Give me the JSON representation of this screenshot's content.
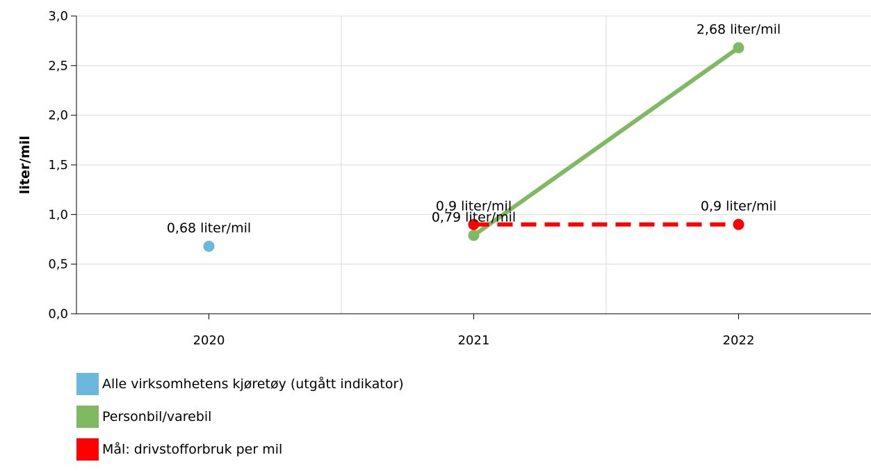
{
  "chart_data": {
    "type": "line",
    "ylabel": "liter/mil",
    "ylim": [
      0,
      3
    ],
    "ytick_labels": [
      "0,0",
      "0,5",
      "1,0",
      "1,5",
      "2,0",
      "2,5",
      "3,0"
    ],
    "categories": [
      "2020",
      "2021",
      "2022"
    ],
    "grid": true,
    "legend_position": "bottom-left",
    "series": [
      {
        "name": "Alle virksomhetens kjøretøy (utgått indikator)",
        "color": "#6bb8dc",
        "style": "markers",
        "points": [
          {
            "x": "2020",
            "y": 0.68,
            "label": "0,68 liter/mil"
          }
        ]
      },
      {
        "name": "Personbil/varebil",
        "color": "#7fb961",
        "style": "solid",
        "points": [
          {
            "x": "2021",
            "y": 0.79,
            "label": "0,79 liter/mil"
          },
          {
            "x": "2022",
            "y": 2.68,
            "label": "2,68 liter/mil"
          }
        ]
      },
      {
        "name": "Mål: drivstofforbruk per mil",
        "color": "#ff0000",
        "style": "dashed",
        "points": [
          {
            "x": "2021",
            "y": 0.9,
            "label": "0,9 liter/mil"
          },
          {
            "x": "2022",
            "y": 0.9,
            "label": "0,9 liter/mil"
          }
        ]
      }
    ]
  }
}
